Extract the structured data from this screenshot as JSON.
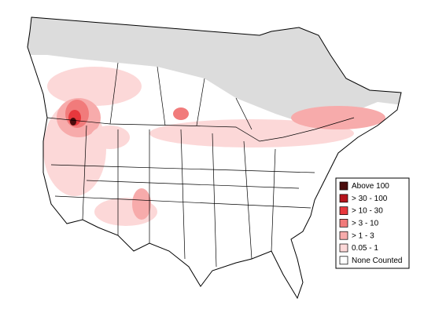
{
  "legend": {
    "items": [
      {
        "label": "Above 100",
        "color": "#4a0c0c"
      },
      {
        "label": "> 30 - 100",
        "color": "#b5141c"
      },
      {
        "label": "> 10 - 30",
        "color": "#e8383d"
      },
      {
        "label": "> 3 - 10",
        "color": "#f17b7b"
      },
      {
        "label": "> 1 - 3",
        "color": "#f7abab"
      },
      {
        "label": "0.05 - 1",
        "color": "#fcd8d8"
      },
      {
        "label": "None Counted",
        "color": "#ffffff"
      }
    ]
  }
}
